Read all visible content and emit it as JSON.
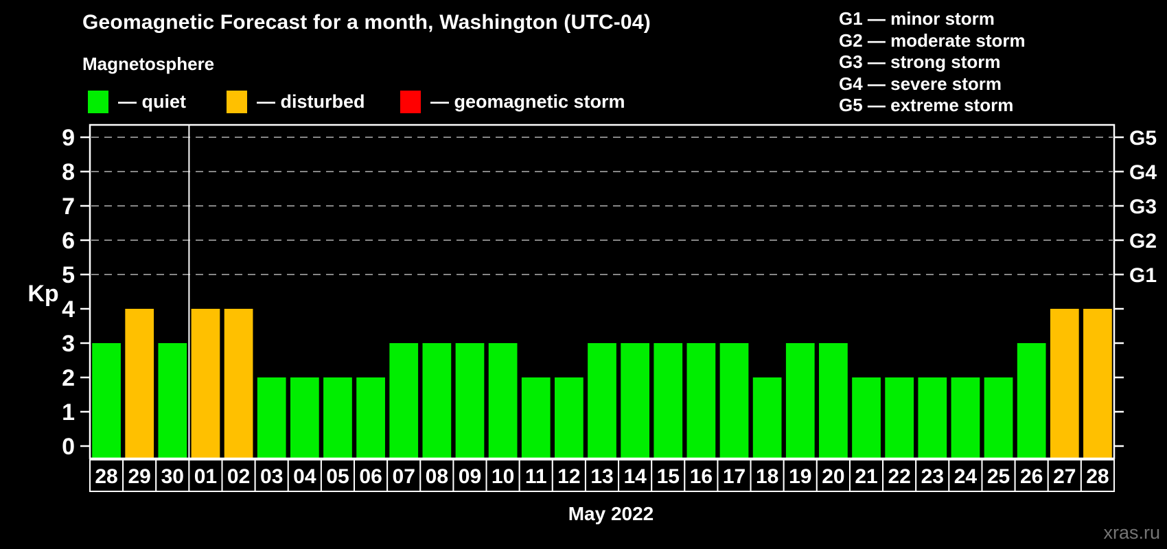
{
  "header": {
    "title": "Geomagnetic Forecast for a month, Washington (UTC-04)",
    "subtitle": "Magnetosphere",
    "legend": [
      {
        "key": "quiet",
        "label": "— quiet",
        "color": "#00ee00"
      },
      {
        "key": "disturbed",
        "label": "— disturbed",
        "color": "#ffc000"
      },
      {
        "key": "storm",
        "label": "— geomagnetic storm",
        "color": "#ff0000"
      }
    ],
    "g_scale_legend": [
      "G1 — minor storm",
      "G2 — moderate storm",
      "G3 — strong storm",
      "G4 — severe storm",
      "G5 — extreme storm"
    ]
  },
  "watermark": "xras.ru",
  "chart_data": {
    "type": "bar",
    "title": "Geomagnetic Forecast for a month, Washington (UTC-04)",
    "subtitle": "Magnetosphere",
    "xlabel": "May 2022",
    "ylabel": "Kp",
    "ylim": [
      0,
      9
    ],
    "yticks": [
      0,
      1,
      2,
      3,
      4,
      5,
      6,
      7,
      8,
      9
    ],
    "gridlines_at": [
      5,
      6,
      7,
      8,
      9
    ],
    "grid": "dashed-horizontal",
    "legend_position": "top",
    "right_axis_labels": [
      {
        "kp": 5,
        "label": "G1"
      },
      {
        "kp": 6,
        "label": "G2"
      },
      {
        "kp": 7,
        "label": "G3"
      },
      {
        "kp": 8,
        "label": "G4"
      },
      {
        "kp": 9,
        "label": "G5"
      }
    ],
    "status_colors": {
      "quiet": "#00ee00",
      "disturbed": "#ffc000",
      "storm": "#ff0000"
    },
    "month_separator_after_index": 2,
    "categories": [
      "28",
      "29",
      "30",
      "01",
      "02",
      "03",
      "04",
      "05",
      "06",
      "07",
      "08",
      "09",
      "10",
      "11",
      "12",
      "13",
      "14",
      "15",
      "16",
      "17",
      "18",
      "19",
      "20",
      "21",
      "22",
      "23",
      "24",
      "25",
      "26",
      "27",
      "28"
    ],
    "series": [
      {
        "name": "Kp forecast",
        "values": [
          3,
          4,
          3,
          4,
          4,
          2,
          2,
          2,
          2,
          3,
          3,
          3,
          3,
          2,
          2,
          3,
          3,
          3,
          3,
          3,
          2,
          3,
          3,
          2,
          2,
          2,
          2,
          2,
          3,
          4,
          4
        ],
        "statuses": [
          "quiet",
          "disturbed",
          "quiet",
          "disturbed",
          "disturbed",
          "quiet",
          "quiet",
          "quiet",
          "quiet",
          "quiet",
          "quiet",
          "quiet",
          "quiet",
          "quiet",
          "quiet",
          "quiet",
          "quiet",
          "quiet",
          "quiet",
          "quiet",
          "quiet",
          "quiet",
          "quiet",
          "quiet",
          "quiet",
          "quiet",
          "quiet",
          "quiet",
          "quiet",
          "disturbed",
          "disturbed"
        ]
      }
    ]
  }
}
